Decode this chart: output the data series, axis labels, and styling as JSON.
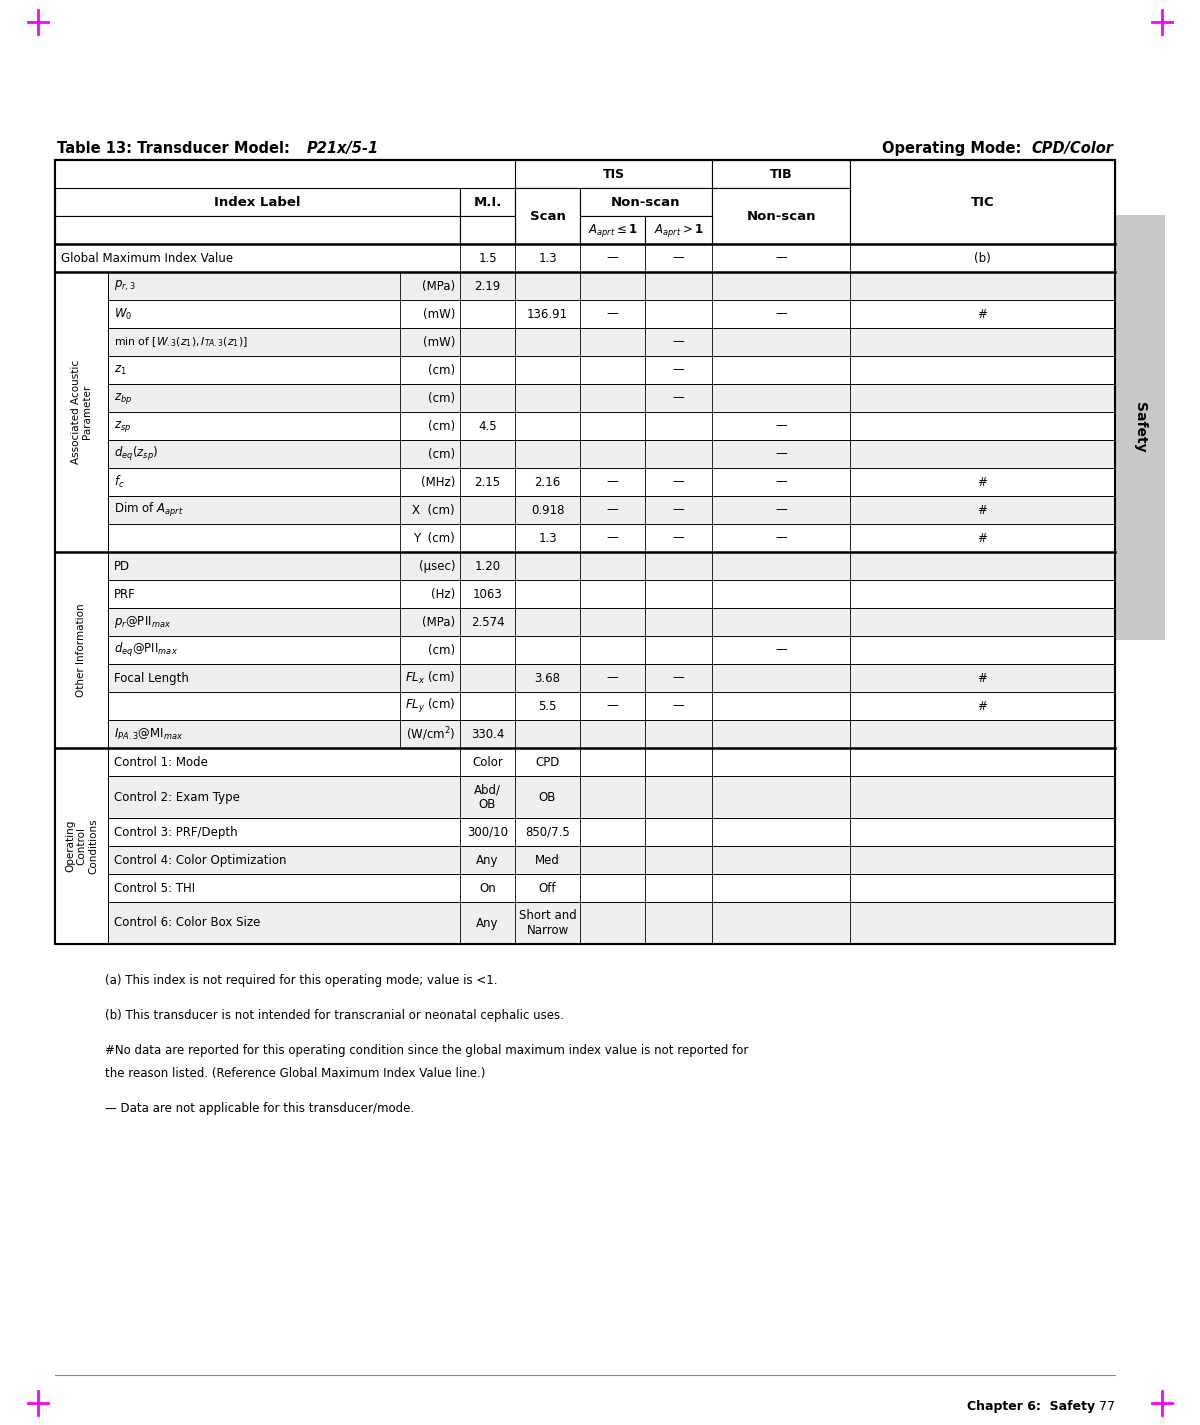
{
  "title_bold": "Table 13: Transducer Model: ",
  "title_italic": "P21x/5-1",
  "title_right_bold": "Operating Mode: ",
  "title_right_italic": "CPD/Color",
  "page_label": "Safety",
  "chapter_footer": "Chapter 6:  Safety",
  "page_number": "77",
  "footnote_a": "(a) This index is not required for this operating mode; value is <1.",
  "footnote_b": "(b) This transducer is not intended for transcranial or neonatal cephalic uses.",
  "footnote_hash1": "#No data are reported for this operating condition since the global maximum index value is not reported for",
  "footnote_hash2": "the reason listed. (Reference Global Maximum Index Value line.)",
  "footnote_dash": "— Data are not applicable for this transducer/mode.",
  "dash": "—",
  "tab_color": "#c8c8c8",
  "light_bg": "#efefef",
  "white_bg": "#ffffff",
  "border": "#000000"
}
